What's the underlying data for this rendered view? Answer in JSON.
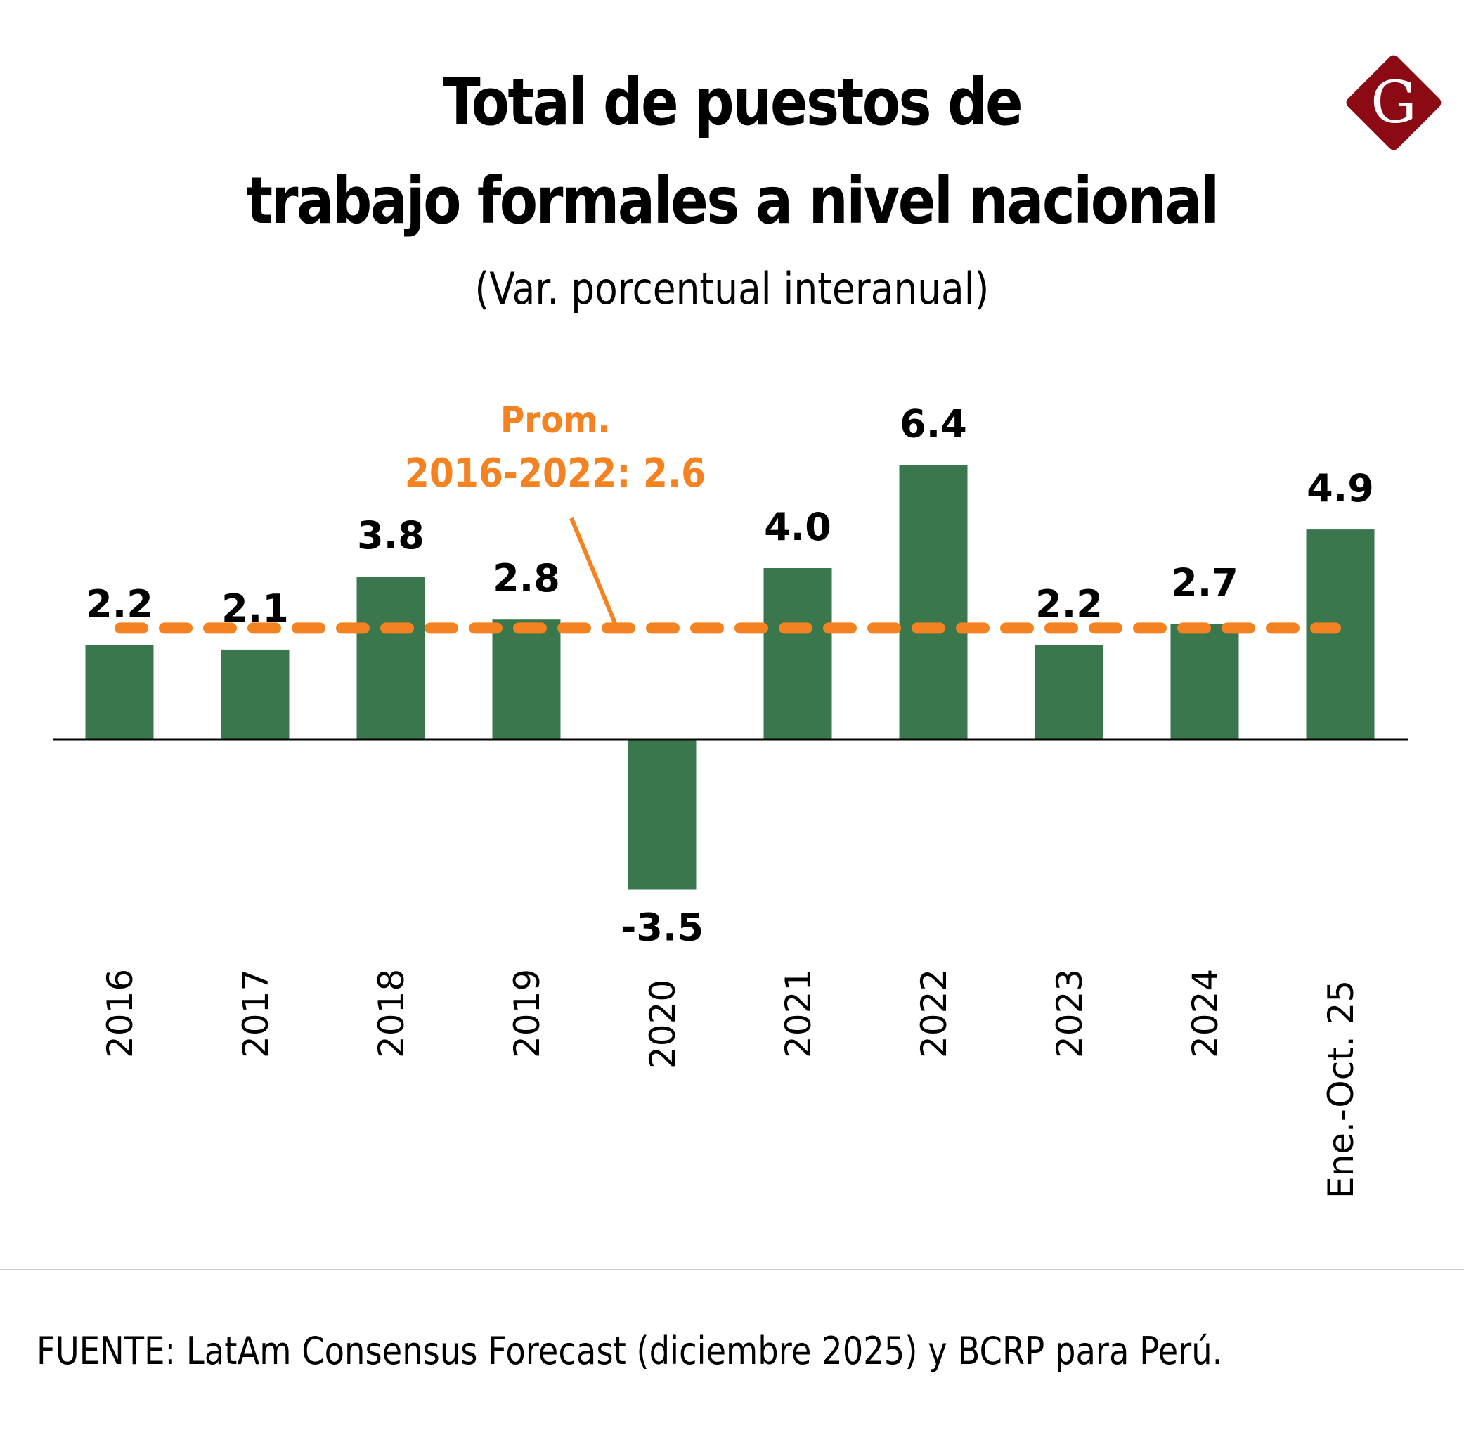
{
  "header": {
    "title_line1": "Total de puestos de",
    "title_line2": "trabajo formales a nivel nacional",
    "subtitle": "(Var. porcentual interanual)",
    "logo_letter": "G",
    "logo_icon": "diamond-g-logo-icon"
  },
  "colors": {
    "bar": "#3a774d",
    "average_line": "#f58220",
    "logo_bg": "#8b0a14",
    "text": "#000000",
    "divider": "#c8c8c8"
  },
  "chart_data": {
    "type": "bar",
    "title": "Total de puestos de trabajo formales a nivel nacional",
    "subtitle": "(Var. porcentual interanual)",
    "xlabel": "",
    "ylabel": "",
    "categories": [
      "2016",
      "2017",
      "2018",
      "2019",
      "2020",
      "2021",
      "2022",
      "2023",
      "2024",
      "Ene.-Oct. 25"
    ],
    "values": [
      2.2,
      2.1,
      3.8,
      2.8,
      -3.5,
      4.0,
      6.4,
      2.2,
      2.7,
      4.9
    ],
    "value_labels": [
      "2.2",
      "2.1",
      "3.8",
      "2.8",
      "-3.5",
      "4.0",
      "6.4",
      "2.2",
      "2.7",
      "4.9"
    ],
    "ylim": [
      -4.5,
      8
    ],
    "grid": false,
    "legend": "none",
    "reference_line": {
      "value": 2.6,
      "style": "dashed",
      "label_line1": "Prom.",
      "label_line2": "2016-2022: 2.6"
    }
  },
  "footer": {
    "source": "FUENTE: LatAm Consensus Forecast (diciembre 2025) y BCRP para Perú."
  }
}
